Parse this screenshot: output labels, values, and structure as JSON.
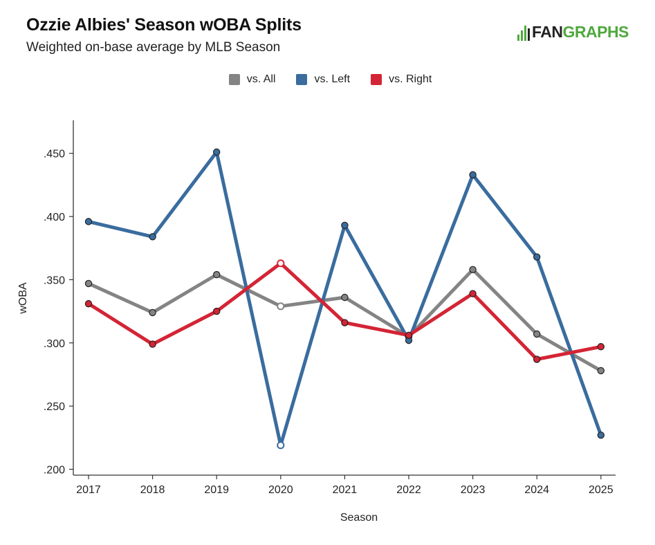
{
  "header": {
    "title": "Ozzie Albies' Season wOBA Splits",
    "subtitle": "Weighted on-base average by MLB Season"
  },
  "logo": {
    "text_a": "FAN",
    "text_b": "GRAPHS",
    "color": "#4fa83d"
  },
  "chart_data": {
    "type": "line",
    "xlabel": "Season",
    "ylabel": "wOBA",
    "categories": [
      "2017",
      "2018",
      "2019",
      "2020",
      "2021",
      "2022",
      "2023",
      "2024",
      "2025"
    ],
    "ylim": [
      0.2,
      0.475
    ],
    "yticks": [
      0.2,
      0.25,
      0.3,
      0.35,
      0.4,
      0.45
    ],
    "ytick_labels": [
      ".200",
      ".250",
      ".300",
      ".350",
      ".400",
      ".450"
    ],
    "grid": false,
    "legend_position": "top-center",
    "series": [
      {
        "name": "vs. All",
        "color": "#848484",
        "values": [
          0.347,
          0.324,
          0.354,
          0.329,
          0.336,
          0.305,
          0.358,
          0.307,
          0.278
        ]
      },
      {
        "name": "vs. Left",
        "color": "#3a6c9e",
        "values": [
          0.396,
          0.384,
          0.451,
          0.219,
          0.393,
          0.302,
          0.433,
          0.368,
          0.227
        ]
      },
      {
        "name": "vs. Right",
        "color": "#d32535",
        "values": [
          0.331,
          0.299,
          0.325,
          0.363,
          0.316,
          0.306,
          0.339,
          0.287,
          0.297
        ]
      }
    ],
    "hollow_points": [
      {
        "series": "vs. All",
        "x": "2020"
      },
      {
        "series": "vs. Left",
        "x": "2020"
      },
      {
        "series": "vs. Right",
        "x": "2020"
      }
    ]
  }
}
